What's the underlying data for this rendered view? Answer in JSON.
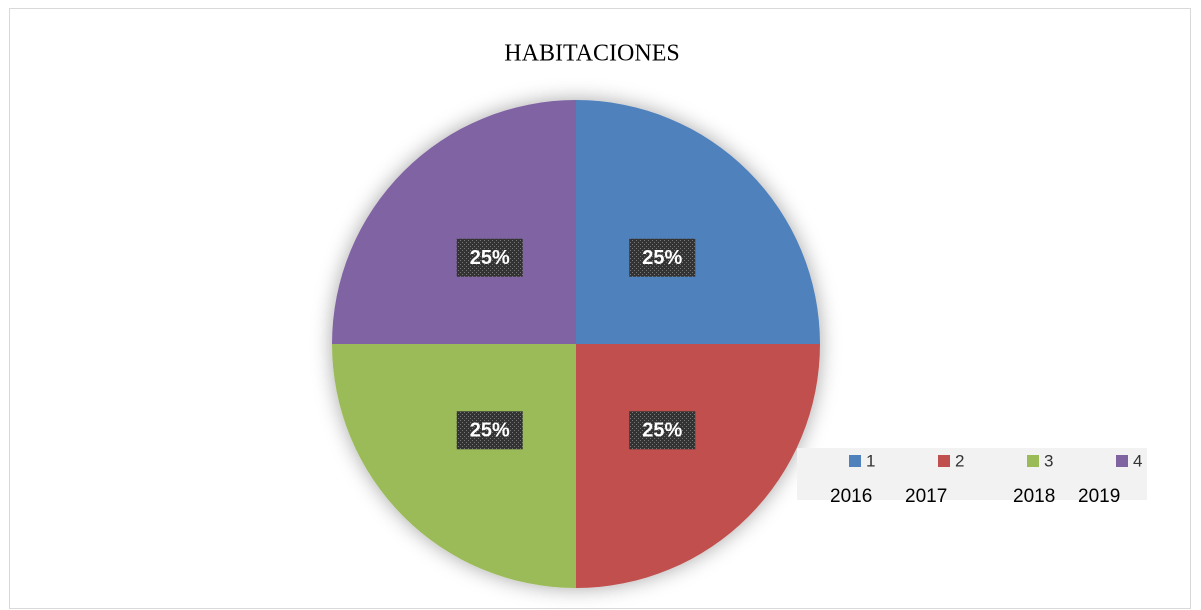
{
  "chart_data": {
    "type": "pie",
    "title": "HABITACIONES",
    "categories": [
      "1",
      "2",
      "3",
      "4"
    ],
    "values": [
      25,
      25,
      25,
      25
    ],
    "value_labels": [
      "25%",
      "25%",
      "25%",
      "25%"
    ],
    "colors": [
      "#4f81bd",
      "#c0504d",
      "#9bbb59",
      "#8064a2"
    ],
    "annotations": [
      "2016",
      "2017",
      "2018",
      "2019"
    ]
  }
}
